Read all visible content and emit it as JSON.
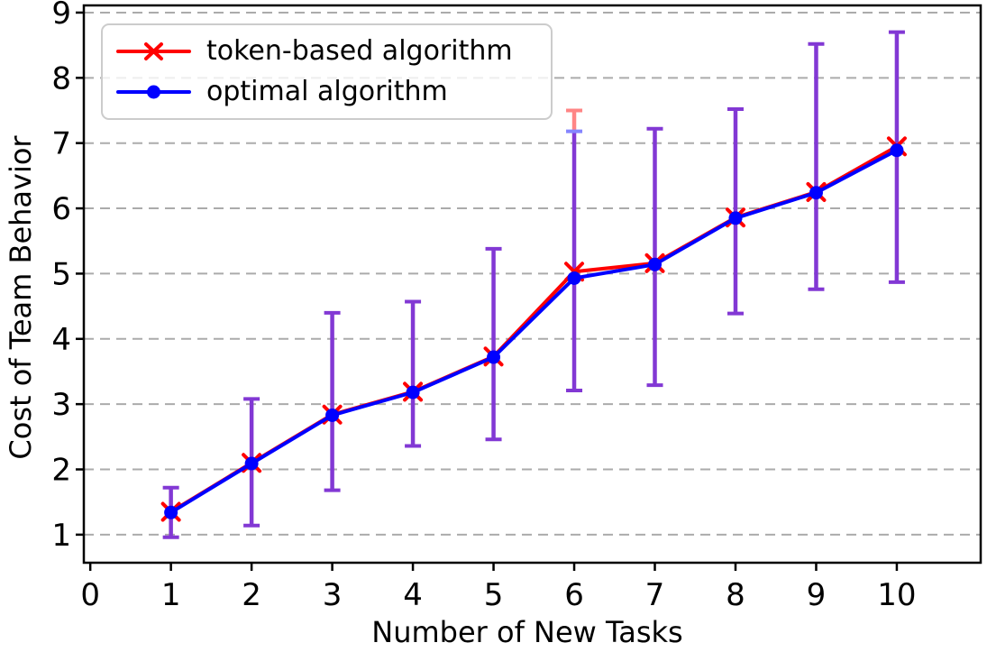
{
  "chart_data": {
    "type": "line",
    "title": "",
    "xlabel": "Number of New Tasks",
    "ylabel": "Cost of Team Behavior",
    "x": [
      1,
      2,
      3,
      4,
      5,
      6,
      7,
      8,
      9,
      10
    ],
    "xticks": [
      0,
      1,
      2,
      3,
      4,
      5,
      6,
      7,
      8,
      9,
      10
    ],
    "yticks": [
      1,
      2,
      3,
      4,
      5,
      6,
      7,
      8,
      9
    ],
    "xlim": [
      -0.08,
      11.04
    ],
    "ylim": [
      0.57,
      9.11
    ],
    "grid": {
      "axis": "y",
      "style": "dashed",
      "color": "#ababab"
    },
    "legend_position": "upper-left",
    "series": [
      {
        "name": "token-based algorithm",
        "color": "#ff0000",
        "marker": "x",
        "values": [
          1.35,
          2.1,
          2.84,
          3.19,
          3.73,
          5.03,
          5.16,
          5.86,
          6.25,
          6.95
        ]
      },
      {
        "name": "optimal algorithm",
        "color": "#0000ff",
        "marker": "circle",
        "values": [
          1.34,
          2.09,
          2.83,
          3.18,
          3.72,
          4.93,
          5.14,
          5.85,
          6.24,
          6.89
        ]
      }
    ],
    "error_bars": {
      "color": "#8238d4",
      "low": [
        0.96,
        1.14,
        1.68,
        2.36,
        2.46,
        3.21,
        3.29,
        4.39,
        4.76,
        4.87
      ],
      "high": [
        1.72,
        3.08,
        4.4,
        4.57,
        5.38,
        7.18,
        7.22,
        7.52,
        8.52,
        8.7
      ],
      "token_overlay": {
        "x": 6,
        "low": 7.18,
        "high": 7.5,
        "color": "#ff8585",
        "cap_color": "#8585ff"
      }
    }
  }
}
